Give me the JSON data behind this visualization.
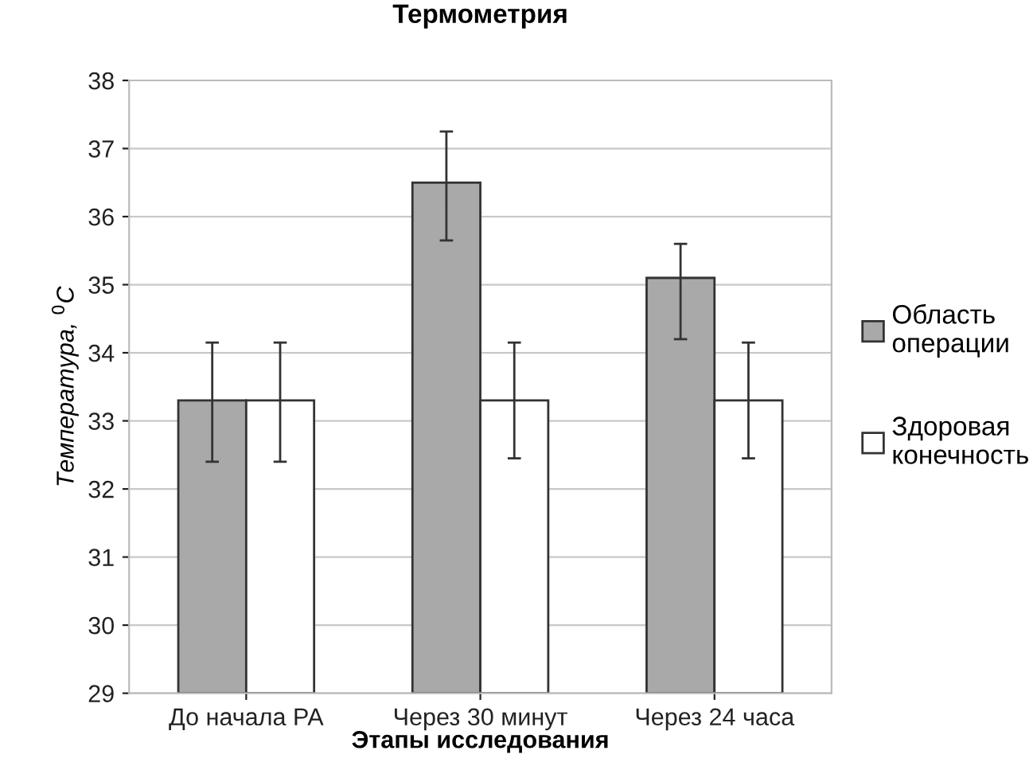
{
  "chart_data": {
    "type": "bar",
    "title": "Термометрия",
    "xlabel": "Этапы исследования",
    "ylabel": "Температура, $^{0}$C",
    "categories": [
      "До начала РА",
      "Через 30 минут",
      "Через 24 часа"
    ],
    "series": [
      {
        "name": "Область операции",
        "color": "#a9a9a9",
        "values": [
          33.3,
          36.5,
          35.1
        ],
        "errors": [
          [
            32.4,
            34.15
          ],
          [
            35.65,
            37.25
          ],
          [
            34.2,
            35.6
          ]
        ]
      },
      {
        "name": "Здоровая конечность",
        "color": "#ffffff",
        "values": [
          33.3,
          33.3,
          33.3
        ],
        "errors": [
          [
            32.4,
            34.15
          ],
          [
            32.45,
            34.15
          ],
          [
            32.45,
            34.15
          ]
        ]
      }
    ],
    "ylim": [
      29,
      38
    ],
    "yticks": [
      29,
      30,
      31,
      32,
      33,
      34,
      35,
      36,
      37,
      38
    ],
    "grid": "y",
    "legend": "right"
  }
}
